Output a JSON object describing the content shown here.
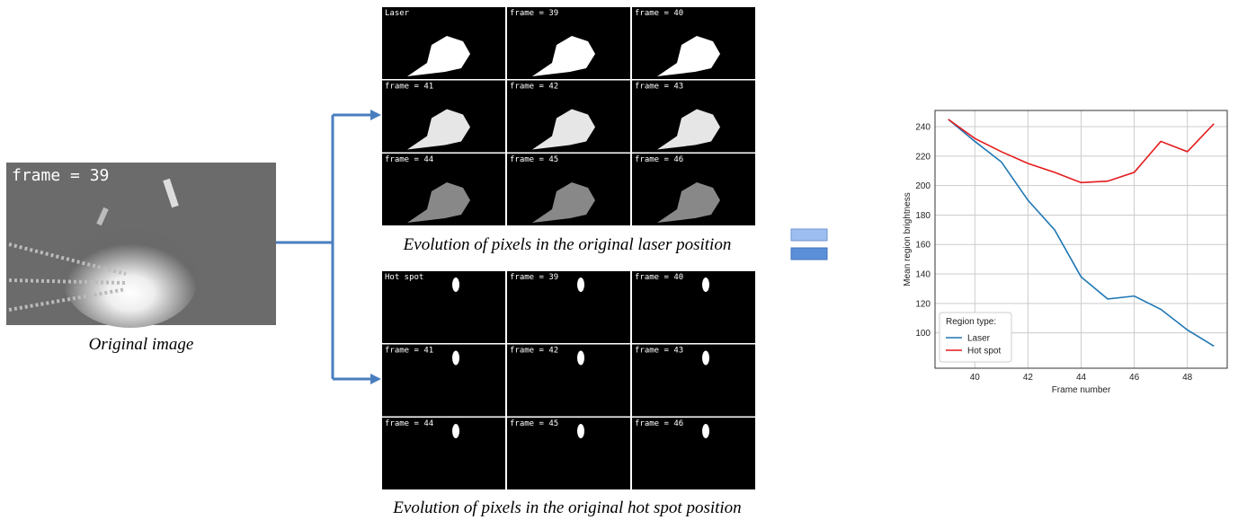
{
  "original": {
    "label": "frame = 39",
    "caption": "Original image"
  },
  "laser_grid": {
    "tiles": [
      "Laser",
      "frame = 39",
      "frame = 40",
      "frame = 41",
      "frame = 42",
      "frame = 43",
      "frame = 44",
      "frame = 45",
      "frame = 46"
    ],
    "caption": "Evolution of pixels in the original laser position"
  },
  "hotspot_grid": {
    "tiles": [
      "Hot spot",
      "frame = 39",
      "frame = 40",
      "frame = 41",
      "frame = 42",
      "frame = 43",
      "frame = 44",
      "frame = 45",
      "frame = 46"
    ],
    "caption": "Evolution of pixels in the original hot spot position"
  },
  "chart_data": {
    "type": "line",
    "x_label": "Frame number",
    "y_label": "Mean region brightness",
    "x": [
      39,
      40,
      41,
      42,
      43,
      44,
      45,
      46,
      47,
      48,
      49
    ],
    "series": [
      {
        "name": "Laser",
        "color": "#1f77b4",
        "values": [
          245,
          230,
          216,
          190,
          170,
          138,
          123,
          125,
          116,
          102,
          91
        ]
      },
      {
        "name": "Hot spot",
        "color": "#e41a1c",
        "values": [
          245,
          232,
          223,
          215,
          209,
          202,
          203,
          209,
          230,
          223,
          242
        ]
      }
    ],
    "xlim": [
      38.5,
      49.5
    ],
    "xticks": [
      40,
      42,
      44,
      46,
      48
    ],
    "ylim": [
      76,
      251
    ],
    "yticks": [
      100,
      120,
      140,
      160,
      180,
      200,
      220,
      240
    ],
    "grid": true,
    "legend_title": "Region type:",
    "legend": "lower left"
  }
}
